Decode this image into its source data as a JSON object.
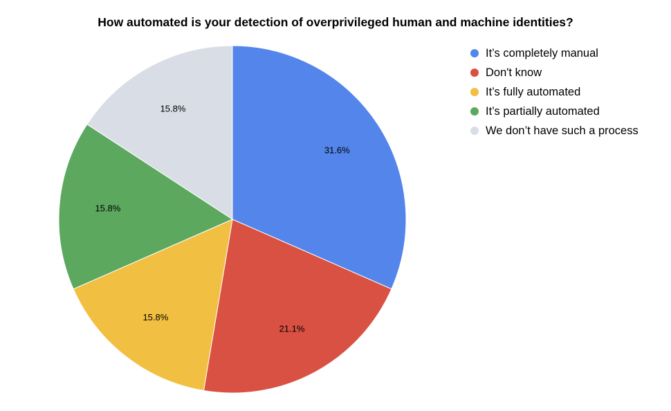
{
  "chart_data": {
    "type": "pie",
    "title": "How automated is your detection of overprivileged human and machine identities?",
    "legend_position": "right",
    "slices": [
      {
        "label": "It’s completely manual",
        "value": 31.6,
        "value_label": "31.6%",
        "color": "#5385EA"
      },
      {
        "label": "Don't know",
        "value": 21.1,
        "value_label": "21.1%",
        "color": "#D95142"
      },
      {
        "label": "It’s fully automated",
        "value": 15.8,
        "value_label": "15.8%",
        "color": "#F1BF42"
      },
      {
        "label": "It’s partially automated",
        "value": 15.8,
        "value_label": "15.8%",
        "color": "#5CA85E"
      },
      {
        "label": "We don’t have such a process",
        "value": 15.8,
        "value_label": "15.8%",
        "color": "#D9DDE6"
      }
    ]
  }
}
